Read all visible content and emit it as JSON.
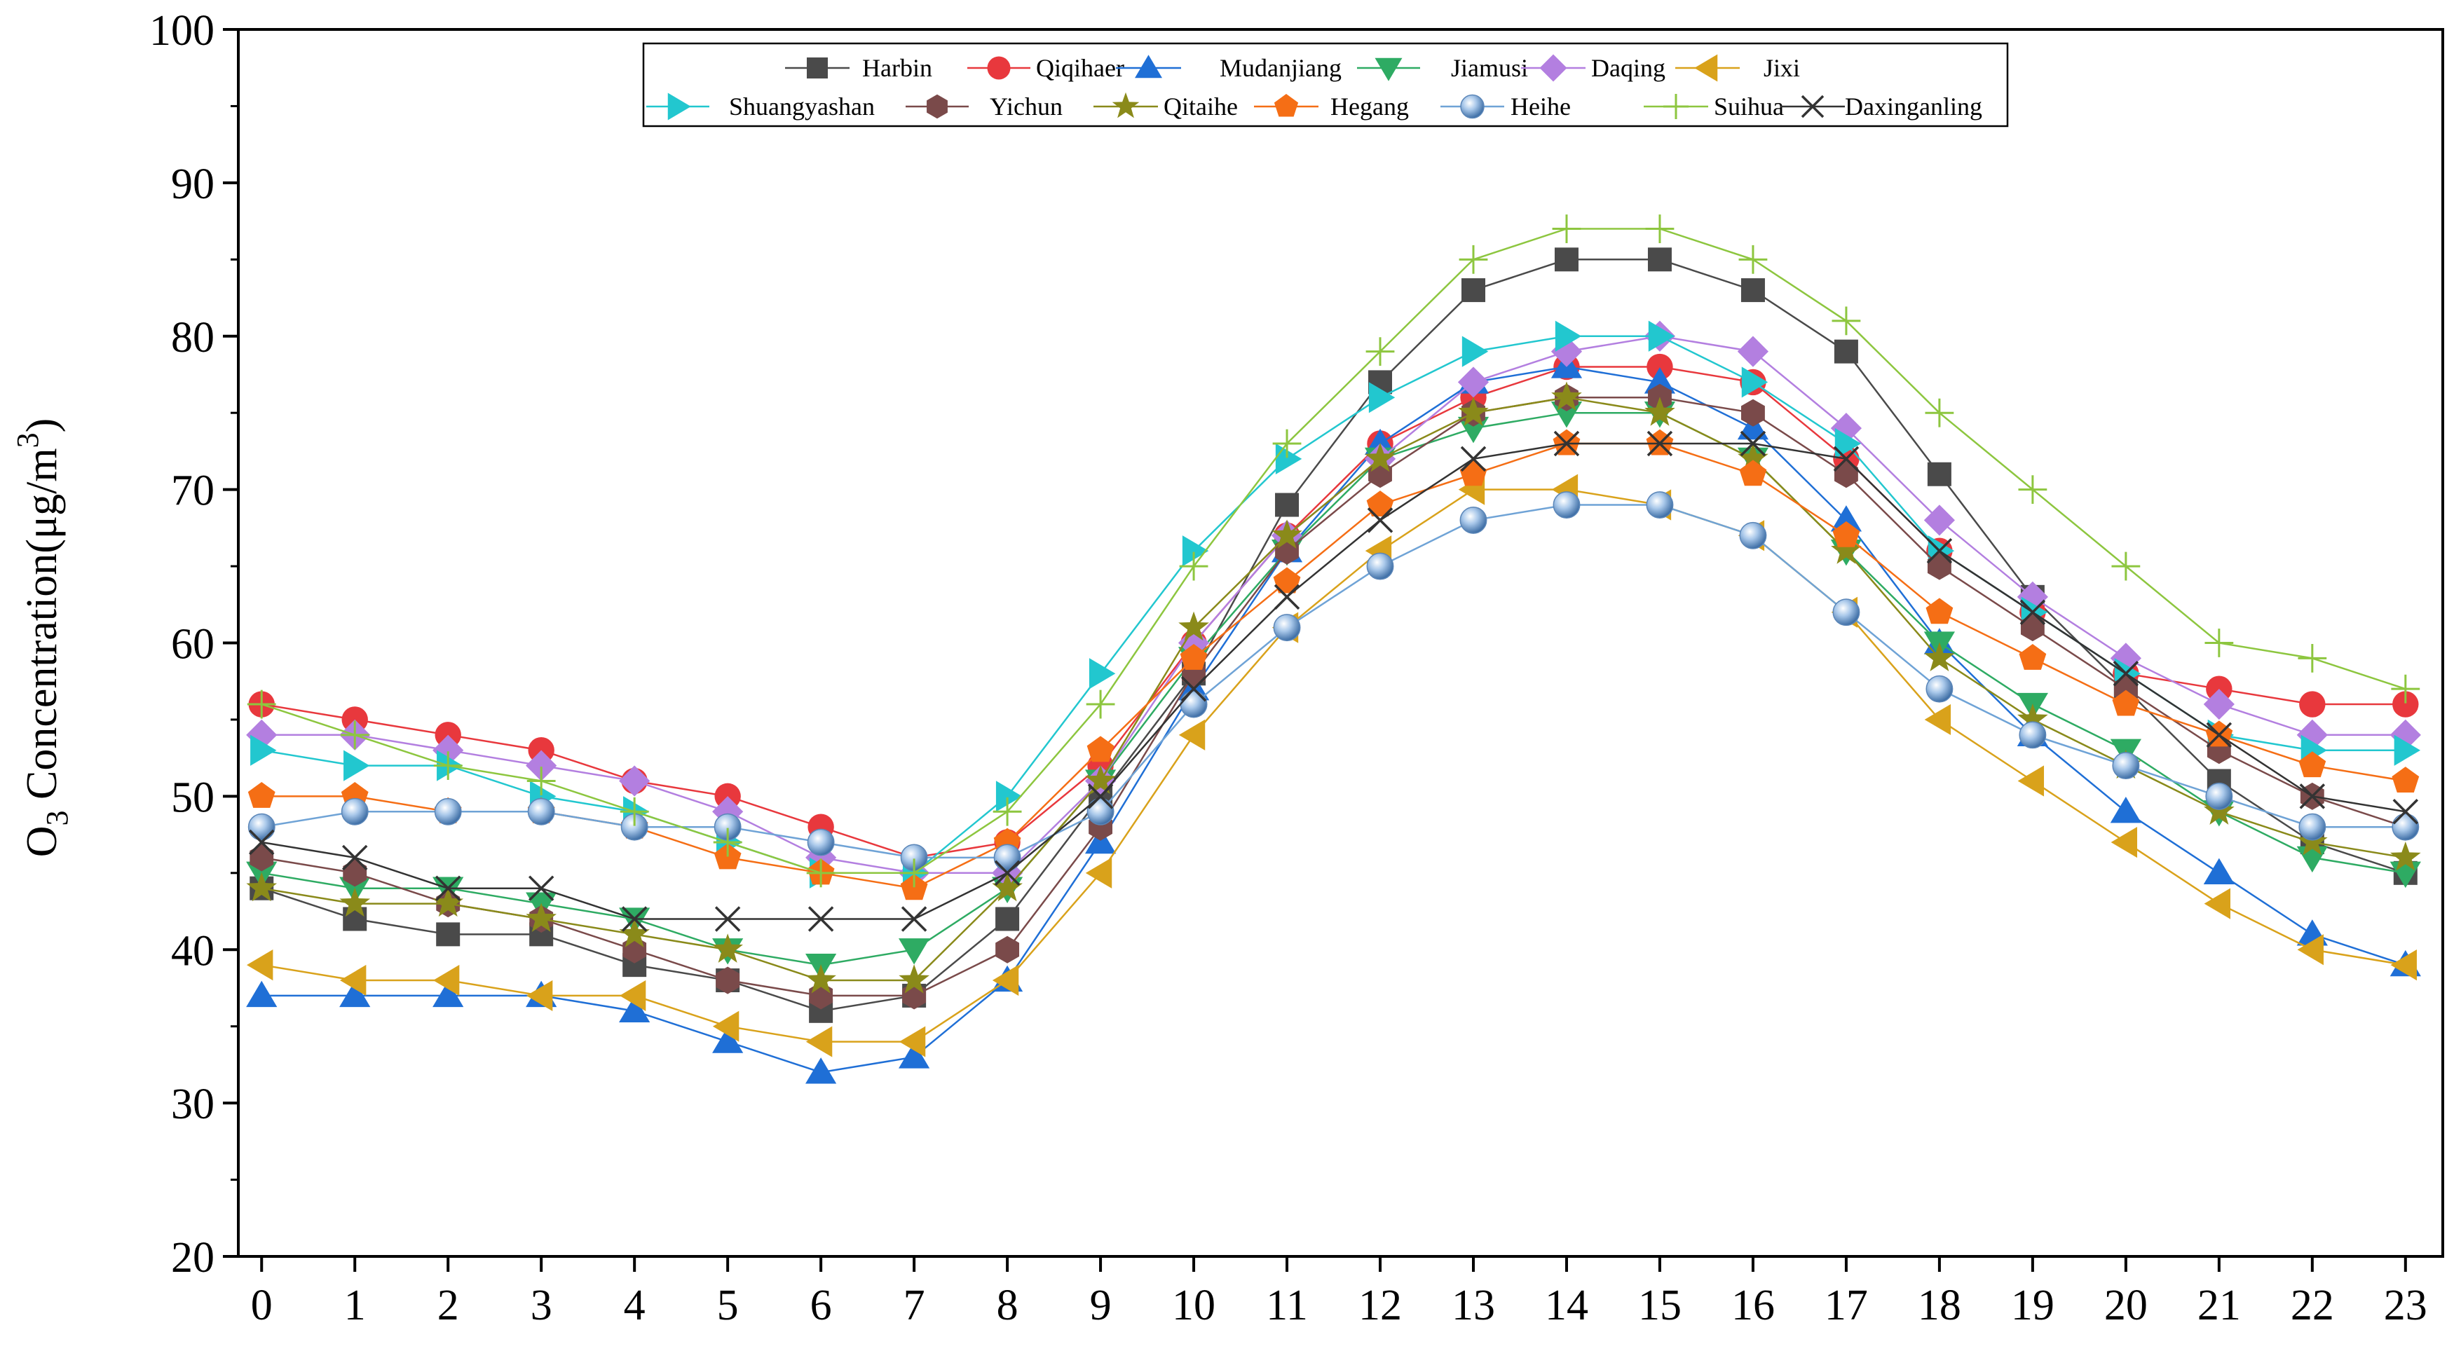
{
  "chart_data": {
    "type": "line",
    "title": "",
    "xlabel": "",
    "ylabel": {
      "main": "O",
      "sub": "3",
      "mid": " Concentration(μg/m",
      "sup": "3",
      "end": ")"
    },
    "ylim": [
      20,
      100
    ],
    "yticks": [
      20,
      30,
      40,
      50,
      60,
      70,
      80,
      90,
      100
    ],
    "x": [
      0,
      1,
      2,
      3,
      4,
      5,
      6,
      7,
      8,
      9,
      10,
      11,
      12,
      13,
      14,
      15,
      16,
      17,
      18,
      19,
      20,
      21,
      22,
      23
    ],
    "xlim": [
      -0.25,
      23.4
    ],
    "grid": false,
    "legend_position": "top-center",
    "series": [
      {
        "name": "Harbin",
        "color": "#4a4a4a",
        "marker": "square",
        "values": [
          44,
          42,
          41,
          41,
          39,
          38,
          36,
          37,
          42,
          50,
          58,
          69,
          77,
          83,
          85,
          85,
          83,
          79,
          71,
          63,
          57,
          51,
          47,
          45
        ]
      },
      {
        "name": "Qiqihaer",
        "color": "#e8383d",
        "marker": "circle",
        "values": [
          56,
          55,
          54,
          53,
          51,
          50,
          48,
          46,
          47,
          52,
          60,
          67,
          73,
          76,
          78,
          78,
          77,
          72,
          66,
          62,
          58,
          57,
          56,
          56
        ]
      },
      {
        "name": "Mudanjiang",
        "color": "#1f6fd6",
        "marker": "triangle-up",
        "values": [
          37,
          37,
          37,
          37,
          36,
          34,
          32,
          33,
          38,
          47,
          57,
          66,
          73,
          77,
          78,
          77,
          74,
          68,
          60,
          54,
          49,
          45,
          41,
          39
        ]
      },
      {
        "name": "Jiamusi",
        "color": "#2eab63",
        "marker": "triangle-down",
        "values": [
          45,
          44,
          44,
          43,
          42,
          40,
          39,
          40,
          44,
          51,
          59,
          66,
          72,
          74,
          75,
          75,
          72,
          66,
          60,
          56,
          53,
          49,
          46,
          45
        ]
      },
      {
        "name": "Daqing",
        "color": "#b37fe0",
        "marker": "diamond",
        "values": [
          54,
          54,
          53,
          52,
          51,
          49,
          46,
          45,
          45,
          51,
          60,
          67,
          72,
          77,
          79,
          80,
          79,
          74,
          68,
          63,
          59,
          56,
          54,
          54
        ]
      },
      {
        "name": "Jixi",
        "color": "#d9a21b",
        "marker": "triangle-left",
        "values": [
          39,
          38,
          38,
          37,
          37,
          35,
          34,
          34,
          38,
          45,
          54,
          61,
          66,
          70,
          70,
          69,
          67,
          62,
          55,
          51,
          47,
          43,
          40,
          39
        ]
      },
      {
        "name": "Shuangyashan",
        "color": "#22c7cf",
        "marker": "triangle-right",
        "values": [
          53,
          52,
          52,
          50,
          49,
          47,
          45,
          45,
          50,
          58,
          66,
          72,
          76,
          79,
          80,
          80,
          77,
          73,
          66,
          62,
          58,
          54,
          53,
          53
        ]
      },
      {
        "name": "Yichun",
        "color": "#7a4a4a",
        "marker": "hexagon",
        "values": [
          46,
          45,
          43,
          42,
          40,
          38,
          37,
          37,
          40,
          48,
          58,
          66,
          71,
          75,
          76,
          76,
          75,
          71,
          65,
          61,
          57,
          53,
          50,
          48
        ]
      },
      {
        "name": "Qitaihe",
        "color": "#8a8a1a",
        "marker": "star",
        "values": [
          44,
          43,
          43,
          42,
          41,
          40,
          38,
          38,
          44,
          51,
          61,
          67,
          72,
          75,
          76,
          75,
          72,
          66,
          59,
          55,
          52,
          49,
          47,
          46
        ]
      },
      {
        "name": "Hegang",
        "color": "#f56e15",
        "marker": "pentagon",
        "values": [
          50,
          50,
          49,
          49,
          48,
          46,
          45,
          44,
          47,
          53,
          59,
          64,
          69,
          71,
          73,
          73,
          71,
          67,
          62,
          59,
          56,
          54,
          52,
          51
        ]
      },
      {
        "name": "Heihe",
        "color": "#6fa3d6",
        "marker": "sphere",
        "values": [
          48,
          49,
          49,
          49,
          48,
          48,
          47,
          46,
          46,
          49,
          56,
          61,
          65,
          68,
          69,
          69,
          67,
          62,
          57,
          54,
          52,
          50,
          48,
          48
        ]
      },
      {
        "name": "Suihua",
        "color": "#8dc63f",
        "marker": "plus",
        "values": [
          56,
          54,
          52,
          51,
          49,
          47,
          45,
          45,
          49,
          56,
          65,
          73,
          79,
          85,
          87,
          87,
          85,
          81,
          75,
          70,
          65,
          60,
          59,
          57
        ]
      },
      {
        "name": "Daxinganling",
        "color": "#333333",
        "marker": "cross",
        "values": [
          47,
          46,
          44,
          44,
          42,
          42,
          42,
          42,
          45,
          50,
          57,
          63,
          68,
          72,
          73,
          73,
          73,
          72,
          66,
          62,
          58,
          54,
          50,
          49
        ]
      }
    ]
  }
}
